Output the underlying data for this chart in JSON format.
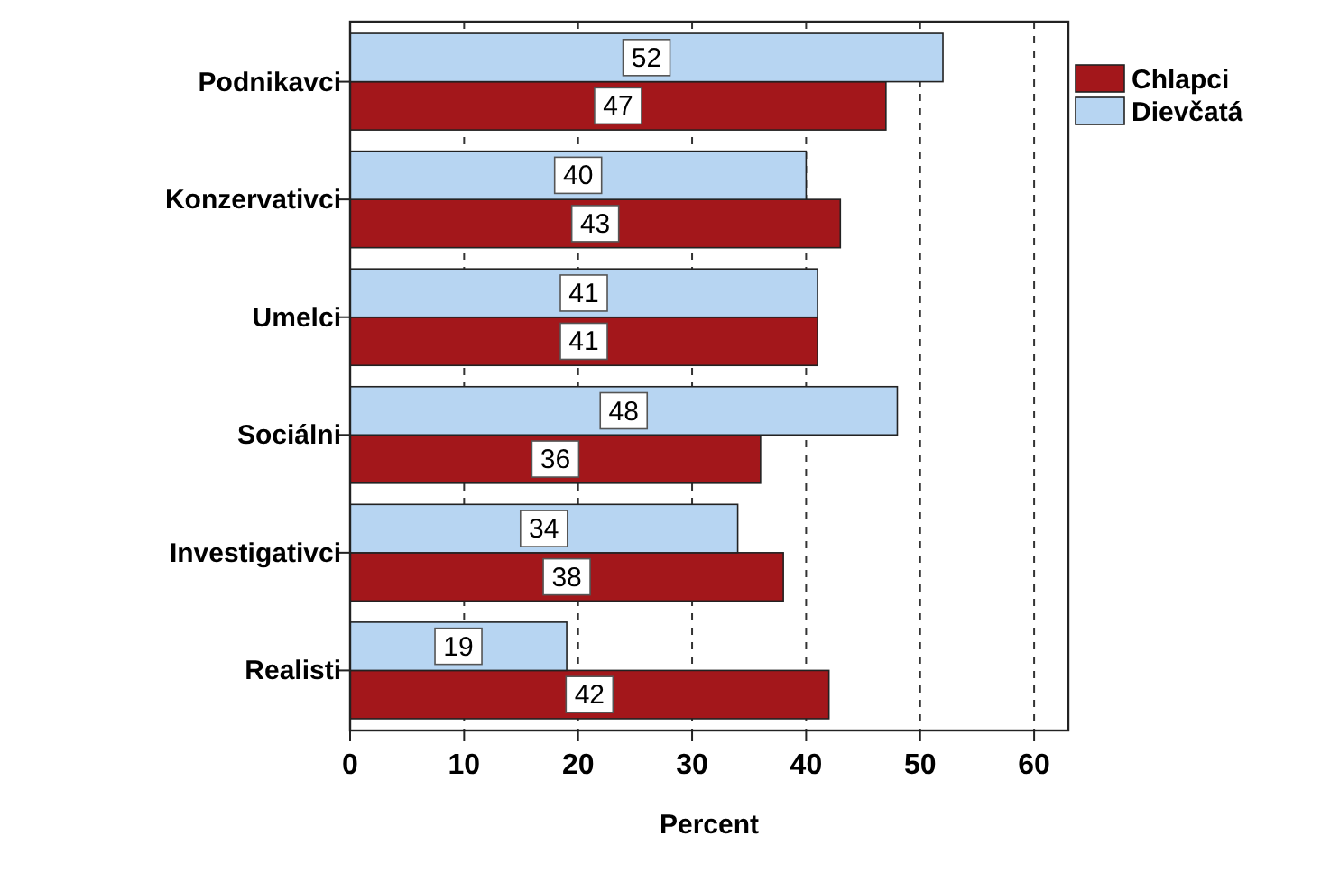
{
  "chart_data": {
    "type": "bar",
    "orientation": "horizontal",
    "xlabel": "Percent",
    "categories": [
      "Podnikavci",
      "Konzervativci",
      "Umelci",
      "Sociálni",
      "Investigativci",
      "Realisti"
    ],
    "series": [
      {
        "name": "Chlapci",
        "color": "#a3171b",
        "values": [
          47,
          43,
          41,
          36,
          38,
          42
        ]
      },
      {
        "name": "Dievčatá",
        "color": "#b7d5f2",
        "values": [
          52,
          40,
          41,
          48,
          34,
          19
        ]
      }
    ],
    "xlim": [
      0,
      63
    ],
    "xticks": [
      0,
      10,
      20,
      30,
      40,
      50,
      60
    ],
    "grid": "x",
    "legend": "top right",
    "data_labels": true
  }
}
